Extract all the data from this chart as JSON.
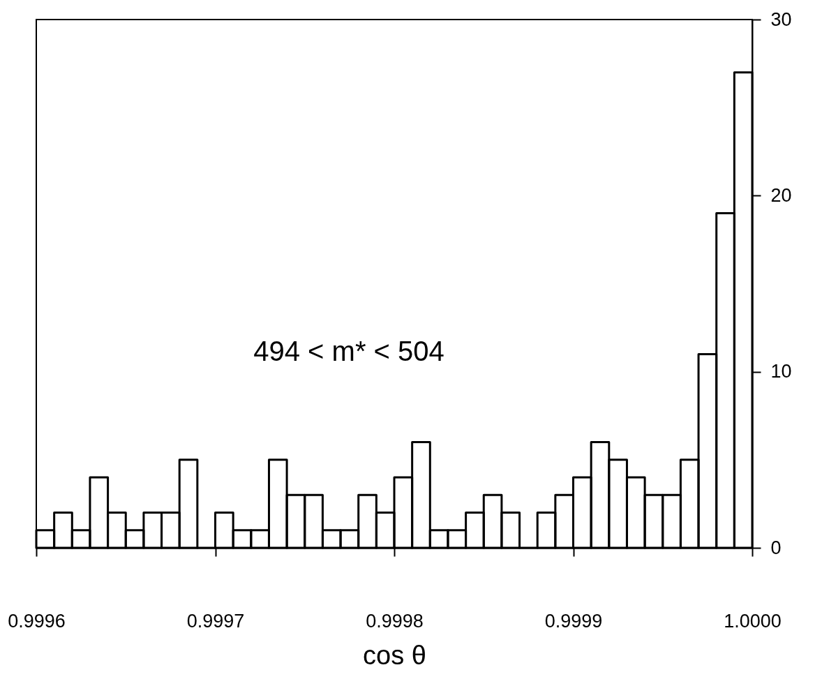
{
  "chart_data": {
    "type": "histogram",
    "xlabel": "cos θ",
    "color": "#000000",
    "bins": [
      0.9996,
      0.99961,
      0.99962,
      0.99963,
      0.99964,
      0.99965,
      0.99966,
      0.99967,
      0.99968,
      0.99969,
      0.9997,
      0.99971,
      0.99972,
      0.99973,
      0.99974,
      0.99975,
      0.99976,
      0.99977,
      0.99978,
      0.99979,
      0.9998,
      0.99981,
      0.99982,
      0.99983,
      0.99984,
      0.99985,
      0.99986,
      0.99987,
      0.99988,
      0.99989,
      0.9999,
      0.99991,
      0.99992,
      0.99993,
      0.99994,
      0.99995,
      0.99996,
      0.99997,
      0.99998,
      0.99999,
      1.0
    ],
    "values": [
      1,
      2,
      1,
      4,
      2,
      1,
      2,
      2,
      5,
      0,
      2,
      1,
      1,
      5,
      3,
      3,
      1,
      1,
      3,
      2,
      4,
      6,
      1,
      1,
      2,
      3,
      2,
      0,
      2,
      3,
      4,
      6,
      5,
      4,
      3,
      3,
      5,
      11,
      19,
      27
    ],
    "xlim": [
      0.9996,
      1.0
    ],
    "xticks": [
      {
        "value": 0.9996,
        "label": "0.9996"
      },
      {
        "value": 0.9997,
        "label": "0.9997"
      },
      {
        "value": 0.9998,
        "label": "0.9998"
      },
      {
        "value": 0.9999,
        "label": "0.9999"
      },
      {
        "value": 1.0,
        "label": "1.0000"
      }
    ],
    "ylim": [
      0,
      30
    ],
    "yticks": [
      0,
      10,
      20,
      30
    ],
    "annotations": [
      "494 < m* < 504"
    ]
  }
}
